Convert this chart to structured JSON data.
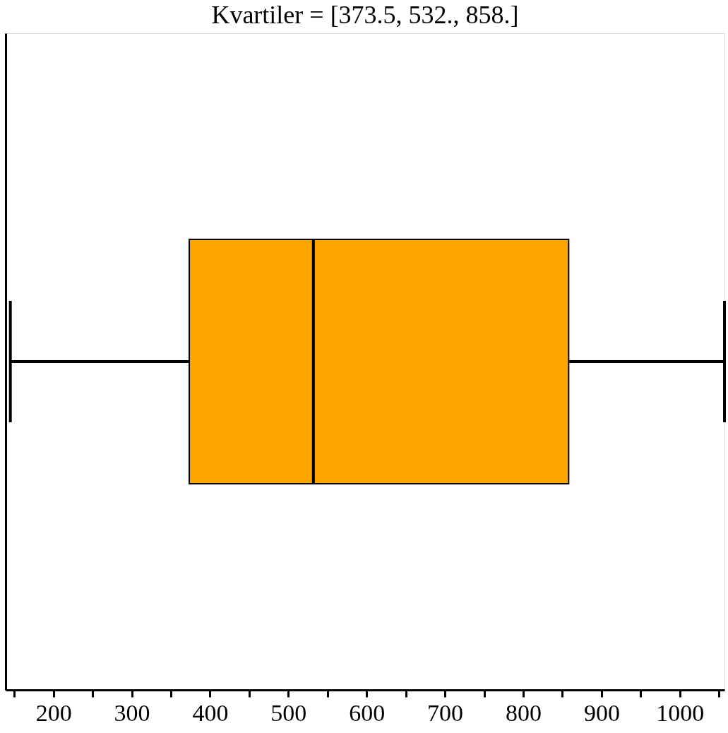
{
  "chart_data": {
    "type": "box",
    "orientation": "horizontal",
    "title": "Kvartiler = [373.5, 532., 858.]",
    "categories": [
      null
    ],
    "boxes": [
      {
        "low": 145,
        "q1": 373.5,
        "median": 532,
        "q3": 858,
        "high": 1057
      }
    ],
    "color": "#ffa500",
    "xlim": [
      139,
      1057
    ],
    "xticks": [
      {
        "value": 150,
        "label": null
      },
      200,
      {
        "value": 250,
        "label": null
      },
      300,
      {
        "value": 350,
        "label": null
      },
      400,
      {
        "value": 450,
        "label": null
      },
      500,
      {
        "value": 550,
        "label": null
      },
      600,
      {
        "value": 650,
        "label": null
      },
      700,
      {
        "value": 750,
        "label": null
      },
      800,
      {
        "value": 850,
        "label": null
      },
      900,
      {
        "value": 950,
        "label": null
      },
      1000,
      {
        "value": 1050,
        "label": null
      }
    ],
    "tick_labels": "x",
    "grid": false,
    "legend": false
  }
}
